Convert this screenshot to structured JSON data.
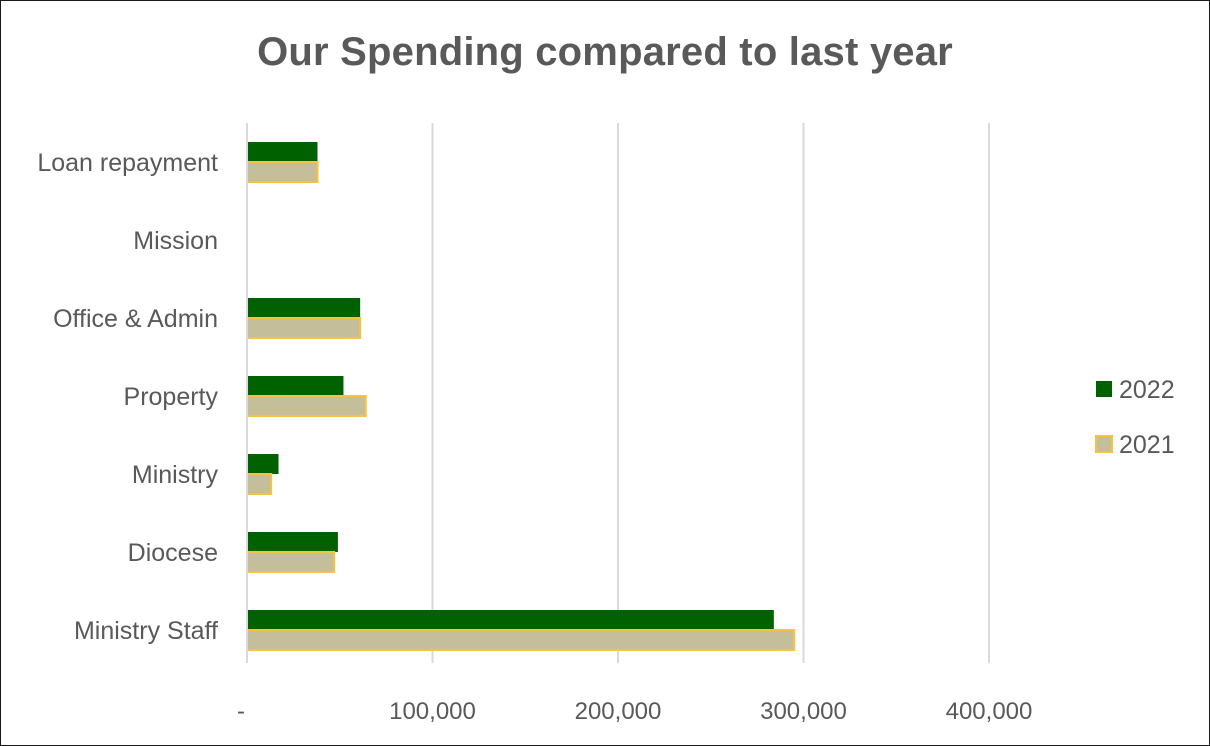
{
  "chart_data": {
    "type": "bar",
    "orientation": "horizontal",
    "title": "Our Spending compared to last year",
    "categories": [
      "Loan repayment",
      "Mission",
      "Office & Admin",
      "Property",
      "Ministry",
      "Diocese",
      "Ministry Staff"
    ],
    "series": [
      {
        "name": "2022",
        "color": "#006100",
        "values": [
          38000,
          0,
          61000,
          52000,
          17000,
          49000,
          284000
        ]
      },
      {
        "name": "2021",
        "color": "#C5BE9B",
        "border": "#F5C242",
        "values": [
          38000,
          0,
          61000,
          64000,
          13000,
          47000,
          295000
        ]
      }
    ],
    "xlim": [
      0,
      400000
    ],
    "xticks": [
      "-",
      "100,000",
      "200,000",
      "300,000",
      "400,000"
    ],
    "xtick_values": [
      0,
      100000,
      200000,
      300000,
      400000
    ],
    "grid": true,
    "legend_position": "right"
  }
}
